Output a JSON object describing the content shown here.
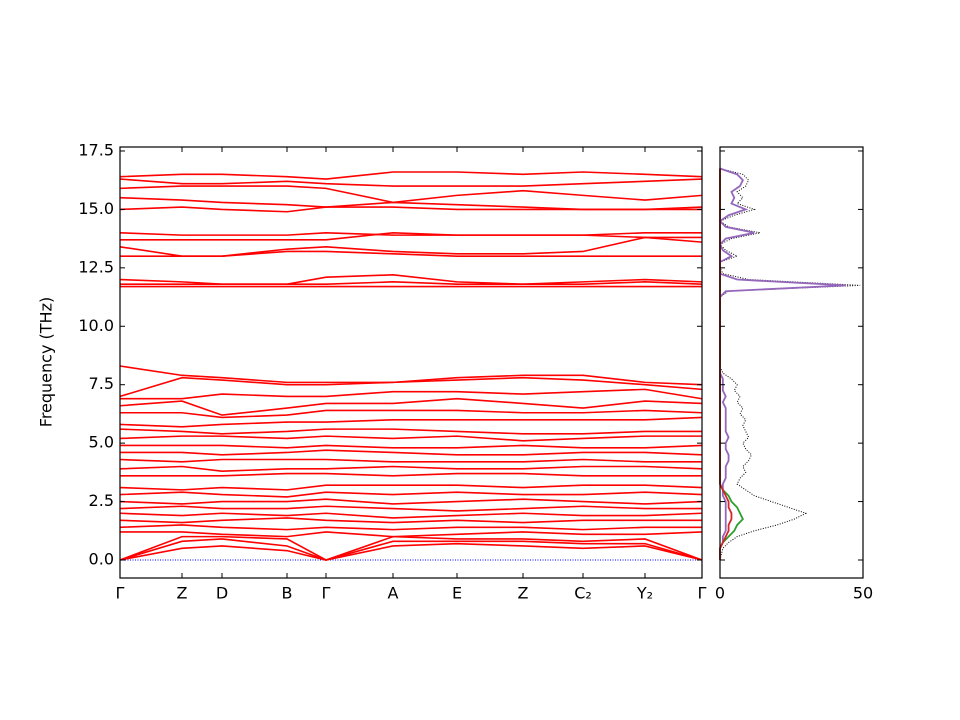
{
  "chart_data": [
    {
      "type": "bands",
      "y_label": "Frequency (THz)",
      "color": "#ff0000",
      "hline": 0,
      "hline_color": "#0000ff",
      "x": [
        0,
        62,
        102,
        167,
        206,
        273,
        337,
        403,
        463,
        525,
        582
      ],
      "xlim": [
        0,
        582
      ],
      "xticks": [
        {
          "value": 0,
          "label": "Γ"
        },
        {
          "value": 62,
          "label": "Z"
        },
        {
          "value": 102,
          "label": "D"
        },
        {
          "value": 167,
          "label": "B"
        },
        {
          "value": 206,
          "label": "Γ"
        },
        {
          "value": 273,
          "label": "A"
        },
        {
          "value": 337,
          "label": "E"
        },
        {
          "value": 403,
          "label": "Z"
        },
        {
          "value": 463,
          "label": "C₂"
        },
        {
          "value": 525,
          "label": "Y₂"
        },
        {
          "value": 582,
          "label": "Γ"
        }
      ],
      "ylim": [
        -0.77,
        17.67
      ],
      "yticks": [
        {
          "value": 0,
          "label": "0.0"
        },
        {
          "value": 2.5,
          "label": "2.5"
        },
        {
          "value": 5,
          "label": "5.0"
        },
        {
          "value": 7.5,
          "label": "7.5"
        },
        {
          "value": 10,
          "label": "10.0"
        },
        {
          "value": 12.5,
          "label": "12.5"
        },
        {
          "value": 15,
          "label": "15.0"
        },
        {
          "value": 17.5,
          "label": "17.5"
        }
      ],
      "series": [
        {
          "values": [
            16.4,
            16.5,
            16.5,
            16.4,
            16.3,
            16.6,
            16.6,
            16.5,
            16.6,
            16.5,
            16.4
          ]
        },
        {
          "values": [
            16.3,
            16.1,
            16.1,
            16.2,
            16.1,
            16.0,
            16.0,
            16.0,
            16.1,
            16.2,
            16.3
          ]
        },
        {
          "values": [
            15.9,
            16.0,
            16.0,
            16.0,
            15.9,
            15.3,
            15.6,
            15.8,
            15.6,
            15.4,
            15.6
          ]
        },
        {
          "values": [
            15.5,
            15.4,
            15.3,
            15.2,
            15.1,
            15.3,
            15.2,
            15.1,
            15.0,
            15.0,
            15.1
          ]
        },
        {
          "values": [
            15.0,
            15.1,
            15.0,
            14.9,
            15.1,
            15.1,
            15.0,
            15.0,
            15.0,
            15.0,
            15.0
          ]
        },
        {
          "values": [
            14.0,
            13.9,
            13.9,
            13.9,
            14.0,
            13.9,
            13.9,
            13.9,
            13.9,
            13.8,
            13.8
          ]
        },
        {
          "values": [
            13.7,
            13.7,
            13.7,
            13.7,
            13.7,
            14.0,
            13.9,
            13.9,
            13.9,
            14.0,
            14.0
          ]
        },
        {
          "values": [
            13.4,
            13.0,
            13.0,
            13.3,
            13.4,
            13.2,
            13.1,
            13.1,
            13.2,
            13.8,
            13.6
          ]
        },
        {
          "values": [
            13.0,
            13.0,
            13.0,
            13.2,
            13.2,
            13.1,
            13.0,
            13.0,
            13.0,
            13.0,
            13.0
          ]
        },
        {
          "values": [
            12.0,
            11.9,
            11.8,
            11.8,
            12.1,
            12.2,
            11.9,
            11.8,
            11.9,
            12.0,
            11.9
          ]
        },
        {
          "values": [
            11.8,
            11.8,
            11.8,
            11.8,
            11.8,
            11.9,
            11.8,
            11.8,
            11.8,
            11.9,
            11.8
          ]
        },
        {
          "values": [
            11.7,
            11.7,
            11.7,
            11.7,
            11.7,
            11.7,
            11.7,
            11.7,
            11.7,
            11.7,
            11.7
          ]
        },
        {
          "values": [
            8.3,
            7.9,
            7.8,
            7.6,
            7.6,
            7.6,
            7.8,
            7.9,
            7.9,
            7.6,
            7.5
          ]
        },
        {
          "values": [
            7.0,
            7.8,
            7.7,
            7.5,
            7.5,
            7.6,
            7.7,
            7.8,
            7.7,
            7.5,
            7.3
          ]
        },
        {
          "values": [
            6.9,
            6.9,
            7.1,
            7.0,
            7.0,
            7.2,
            7.2,
            7.1,
            7.2,
            7.3,
            6.9
          ]
        },
        {
          "values": [
            6.6,
            6.8,
            6.2,
            6.5,
            6.7,
            6.7,
            6.9,
            6.7,
            6.5,
            6.8,
            6.7
          ]
        },
        {
          "values": [
            6.3,
            6.3,
            6.1,
            6.2,
            6.4,
            6.4,
            6.4,
            6.3,
            6.3,
            6.4,
            6.3
          ]
        },
        {
          "values": [
            5.8,
            5.7,
            5.8,
            5.9,
            5.9,
            6.0,
            6.0,
            6.0,
            6.0,
            6.0,
            6.1
          ]
        },
        {
          "values": [
            5.6,
            5.5,
            5.4,
            5.5,
            5.6,
            5.6,
            5.5,
            5.4,
            5.4,
            5.5,
            5.5
          ]
        },
        {
          "values": [
            5.2,
            5.3,
            5.3,
            5.2,
            5.3,
            5.2,
            5.3,
            5.1,
            5.2,
            5.3,
            5.3
          ]
        },
        {
          "values": [
            4.9,
            4.9,
            4.9,
            4.8,
            4.9,
            4.8,
            4.8,
            4.9,
            4.8,
            4.8,
            4.9
          ]
        },
        {
          "values": [
            4.6,
            4.6,
            4.5,
            4.6,
            4.7,
            4.6,
            4.5,
            4.5,
            4.6,
            4.6,
            4.5
          ]
        },
        {
          "values": [
            4.3,
            4.2,
            4.3,
            4.3,
            4.3,
            4.2,
            4.2,
            4.2,
            4.3,
            4.2,
            4.2
          ]
        },
        {
          "values": [
            3.9,
            4.0,
            3.8,
            3.9,
            3.9,
            4.0,
            3.9,
            3.9,
            4.0,
            4.0,
            3.9
          ]
        },
        {
          "values": [
            3.6,
            3.6,
            3.6,
            3.7,
            3.7,
            3.6,
            3.7,
            3.7,
            3.6,
            3.6,
            3.6
          ]
        },
        {
          "values": [
            3.1,
            3.0,
            3.1,
            3.0,
            3.2,
            3.2,
            3.2,
            3.1,
            3.2,
            3.2,
            3.1
          ]
        },
        {
          "values": [
            2.8,
            2.9,
            2.8,
            2.7,
            2.9,
            2.8,
            2.9,
            2.8,
            2.8,
            2.9,
            2.8
          ]
        },
        {
          "values": [
            2.5,
            2.4,
            2.5,
            2.5,
            2.6,
            2.4,
            2.5,
            2.6,
            2.5,
            2.4,
            2.5
          ]
        },
        {
          "values": [
            2.2,
            2.3,
            2.2,
            2.2,
            2.3,
            2.2,
            2.1,
            2.2,
            2.3,
            2.2,
            2.2
          ]
        },
        {
          "values": [
            2.0,
            1.9,
            2.0,
            1.9,
            2.0,
            1.8,
            1.9,
            2.0,
            1.9,
            1.9,
            2.0
          ]
        },
        {
          "values": [
            1.7,
            1.6,
            1.7,
            1.8,
            1.7,
            1.6,
            1.7,
            1.6,
            1.7,
            1.7,
            1.7
          ]
        },
        {
          "values": [
            1.4,
            1.5,
            1.4,
            1.3,
            1.4,
            1.3,
            1.4,
            1.4,
            1.3,
            1.4,
            1.4
          ]
        },
        {
          "values": [
            1.2,
            1.2,
            1.1,
            1.0,
            1.2,
            1.0,
            1.1,
            1.2,
            1.1,
            1.1,
            1.2
          ]
        },
        {
          "values": [
            0,
            1.0,
            1.0,
            0.9,
            0,
            1.0,
            0.9,
            0.9,
            0.8,
            0.9,
            0
          ]
        },
        {
          "values": [
            0,
            0.8,
            0.9,
            0.6,
            0,
            0.8,
            0.8,
            0.8,
            0.7,
            0.7,
            0
          ]
        },
        {
          "values": [
            0,
            0.5,
            0.6,
            0.4,
            0,
            0.6,
            0.7,
            0.6,
            0.5,
            0.6,
            0
          ]
        }
      ]
    },
    {
      "type": "dos",
      "xlim": [
        0,
        50
      ],
      "xticks": [
        0,
        50
      ],
      "y": [
        0,
        0.25,
        0.5,
        0.75,
        1,
        1.25,
        1.5,
        1.75,
        2,
        2.25,
        2.5,
        2.75,
        3,
        3.25,
        3.5,
        3.75,
        4,
        4.25,
        4.5,
        4.75,
        5,
        5.25,
        5.5,
        5.75,
        6,
        6.25,
        6.5,
        6.75,
        7,
        7.25,
        7.5,
        7.75,
        8,
        8.25,
        8.5,
        8.75,
        9,
        9.25,
        9.5,
        9.75,
        10,
        10.25,
        10.5,
        10.75,
        11,
        11.25,
        11.5,
        11.75,
        12,
        12.25,
        12.5,
        12.75,
        13,
        13.25,
        13.5,
        13.75,
        14,
        14.25,
        14.5,
        14.75,
        15,
        15.25,
        15.5,
        15.75,
        16,
        16.25,
        16.5,
        16.75
      ],
      "series": [
        {
          "color": "#000000",
          "style": "dotted",
          "values": [
            0,
            0.5,
            1,
            3,
            6,
            12,
            20,
            26,
            30,
            24,
            18,
            12,
            9,
            6,
            7,
            9,
            8,
            10,
            11,
            9,
            8,
            10,
            9,
            8,
            9,
            7,
            8,
            6,
            7,
            5,
            6,
            4,
            1,
            0,
            0,
            0,
            0,
            0,
            0,
            0,
            0,
            0,
            0,
            0,
            0,
            0,
            3,
            49,
            10,
            1,
            0,
            0,
            6,
            2,
            0,
            4,
            14,
            3,
            0,
            5,
            12,
            6,
            8,
            6,
            9,
            10,
            8,
            0
          ]
        },
        {
          "color": "#9467bd",
          "style": "solid",
          "values": [
            0,
            0,
            0,
            1,
            1,
            2,
            2,
            2,
            2,
            2,
            2,
            1,
            1,
            1,
            2,
            2,
            2,
            3,
            3,
            2,
            2,
            3,
            2,
            2,
            2,
            2,
            2,
            1,
            2,
            1,
            1,
            1,
            0,
            0,
            0,
            0,
            0,
            0,
            0,
            0,
            0,
            0,
            0,
            0,
            0,
            0,
            2,
            44,
            6,
            0,
            0,
            0,
            4,
            1,
            0,
            2,
            12,
            2,
            0,
            3,
            9,
            4,
            5,
            4,
            7,
            8,
            6,
            0
          ]
        },
        {
          "color": "#2ca02c",
          "style": "solid",
          "values": [
            0,
            0,
            0,
            1,
            3,
            5,
            6,
            8,
            7,
            6,
            4,
            3,
            1,
            0,
            0,
            0,
            0,
            0,
            0,
            0,
            0,
            0,
            0,
            0,
            0,
            0,
            0,
            0,
            0,
            0,
            0,
            0,
            0,
            0,
            0,
            0,
            0,
            0,
            0,
            0,
            0,
            0,
            0,
            0,
            0,
            0,
            0,
            0,
            0,
            0,
            0,
            0,
            0,
            0,
            0,
            0,
            0,
            0,
            0,
            0,
            0,
            0,
            0,
            0,
            0,
            0,
            0,
            0
          ]
        },
        {
          "color": "#d62728",
          "style": "solid",
          "values": [
            0,
            0,
            0,
            1,
            2,
            3,
            3,
            4,
            4,
            3,
            3,
            2,
            1,
            0,
            0,
            0,
            0,
            0,
            0,
            0,
            0,
            0,
            0,
            0,
            0,
            0,
            0,
            0,
            0,
            0,
            0,
            0,
            0,
            0,
            0,
            0,
            0,
            0,
            0,
            0,
            0,
            0,
            0,
            0,
            0,
            0,
            0,
            0,
            0,
            0,
            0,
            0,
            0,
            0,
            0,
            0,
            0,
            0,
            0,
            0,
            0,
            0,
            0,
            0,
            0,
            0,
            0,
            0
          ]
        }
      ]
    }
  ]
}
